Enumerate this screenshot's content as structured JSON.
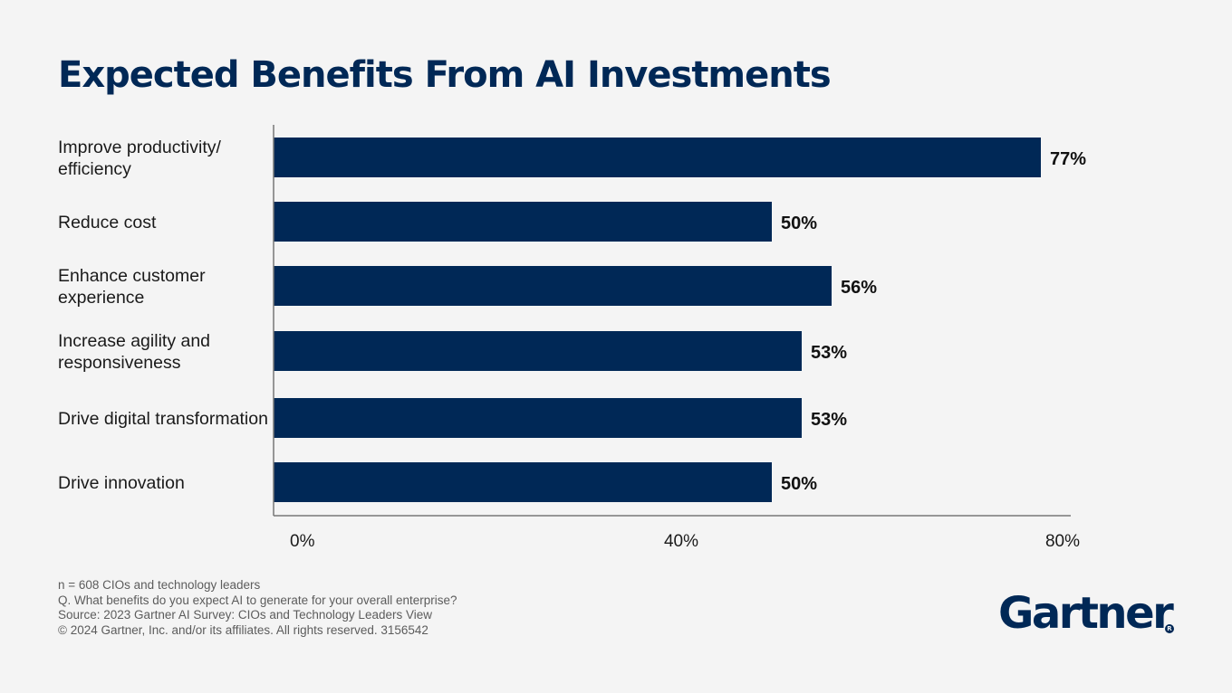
{
  "title": "Expected Benefits From AI Investments",
  "chart_data": {
    "type": "bar",
    "orientation": "horizontal",
    "title": "Expected Benefits From AI Investments",
    "categories": [
      [
        "Improve productivity/",
        "efficiency"
      ],
      [
        "Reduce cost"
      ],
      [
        "Enhance customer",
        "experience"
      ],
      [
        "Increase agility and",
        "responsiveness"
      ],
      [
        "Drive digital transformation"
      ],
      [
        "Drive innovation"
      ]
    ],
    "values": [
      77,
      50,
      56,
      53,
      53,
      50
    ],
    "value_labels": [
      "77%",
      "50%",
      "56%",
      "53%",
      "53%",
      "50%"
    ],
    "xlim": [
      0,
      80
    ],
    "xticks": [
      0,
      40,
      80
    ],
    "xtick_labels": [
      "0%",
      "40%",
      "80%"
    ],
    "bar_color": "#002856",
    "grid": false
  },
  "footnotes": [
    "n = 608 CIOs and technology leaders",
    "Q. What benefits do you expect AI to generate for your overall enterprise?",
    "Source: 2023 Gartner AI Survey: CIOs and Technology Leaders View",
    "© 2024 Gartner, Inc. and/or its affiliates. All rights reserved. 3156542"
  ],
  "logo": {
    "text": "Gartner",
    "mark": "R"
  }
}
